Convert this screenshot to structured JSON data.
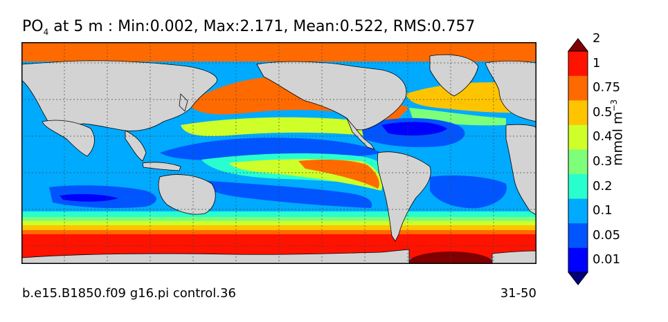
{
  "title": {
    "species": "PO",
    "species_sub": "4",
    "rest": " at 5 m : Min:0.002, Max:2.171, Mean:0.522, RMS:0.757"
  },
  "footer": {
    "case": "b.e15.B1850.f09 g16.pi control.36",
    "years": "31-50"
  },
  "colorbar": {
    "unit": "mmol m",
    "unit_sup": "−3",
    "levels": [
      "0.01",
      "0.05",
      "0.1",
      "0.2",
      "0.3",
      "0.4",
      "0.5",
      "0.75",
      "1",
      "2"
    ],
    "colors": [
      "#00007f",
      "#0000ff",
      "#0055ff",
      "#00aaff",
      "#29ffce",
      "#7dff7a",
      "#ceff29",
      "#ffc400",
      "#ff6a00",
      "#ff1300",
      "#7f0000"
    ]
  },
  "colors": {
    "land": "#d3d3d3",
    "background": "#ffffff"
  }
}
